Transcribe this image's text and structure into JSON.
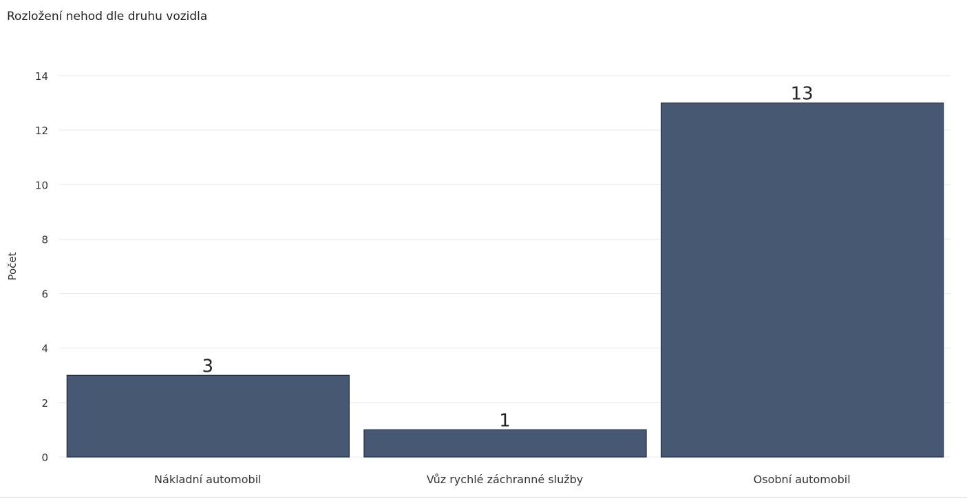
{
  "chart_data": {
    "type": "bar",
    "title": "Rozložení nehod dle druhu vozidla",
    "xlabel": "",
    "ylabel": "Počet",
    "categories": [
      "Nákladní automobil",
      "Vůz rychlé záchranné služby",
      "Osobní automobil"
    ],
    "values": [
      3,
      1,
      13
    ],
    "ylim": [
      0,
      14
    ],
    "yticks": [
      0,
      2,
      4,
      6,
      8,
      10,
      12,
      14
    ],
    "grid": true,
    "data_labels": true,
    "colors": {
      "bar": "#465872",
      "bar_stroke": "#1e2a45",
      "grid": "#e8e8e8",
      "text": "#333333"
    }
  }
}
